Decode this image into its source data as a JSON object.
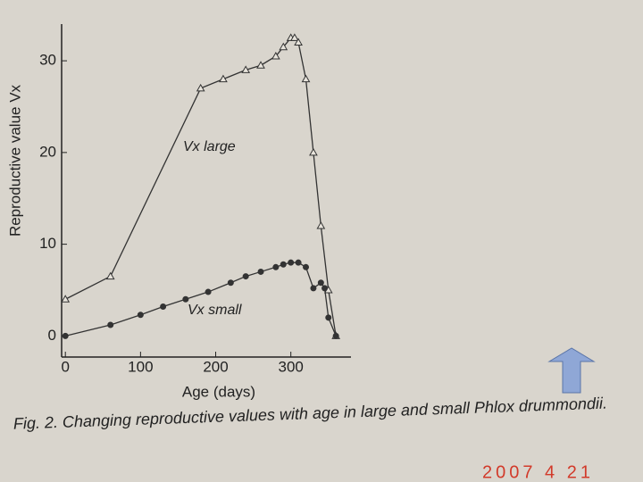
{
  "chart_data": {
    "type": "line",
    "caption": "Fig. 2.  Changing reproductive values with age in large and small Phlox drummondii.",
    "xlabel": "Age (days)",
    "ylabel": "Reproductive value Vx",
    "stamp": "2007 4 21",
    "xlim": [
      -5,
      380
    ],
    "xticks": [
      0,
      100,
      200,
      300
    ],
    "ylim": [
      -2.3,
      34
    ],
    "yticks": [
      0,
      10,
      20,
      30
    ],
    "series": [
      {
        "name": "Vx large",
        "color": "#333333",
        "marker": "triangle",
        "x": [
          0,
          60,
          180,
          210,
          240,
          260,
          280,
          290,
          300,
          305,
          310,
          320,
          330,
          340,
          350,
          360
        ],
        "values": [
          4,
          6.5,
          27,
          28,
          29,
          29.5,
          30.5,
          31.5,
          32.5,
          32.5,
          32,
          28,
          20,
          12,
          5,
          0
        ]
      },
      {
        "name": "Vx small",
        "color": "#333333",
        "marker": "circle",
        "x": [
          0,
          60,
          100,
          130,
          160,
          190,
          220,
          240,
          260,
          280,
          290,
          300,
          310,
          320,
          330,
          340,
          345,
          350,
          360
        ],
        "values": [
          0,
          1.2,
          2.3,
          3.2,
          4,
          4.8,
          5.8,
          6.5,
          7,
          7.5,
          7.8,
          8,
          8,
          7.5,
          5.2,
          5.8,
          5.2,
          2,
          0
        ]
      }
    ]
  }
}
